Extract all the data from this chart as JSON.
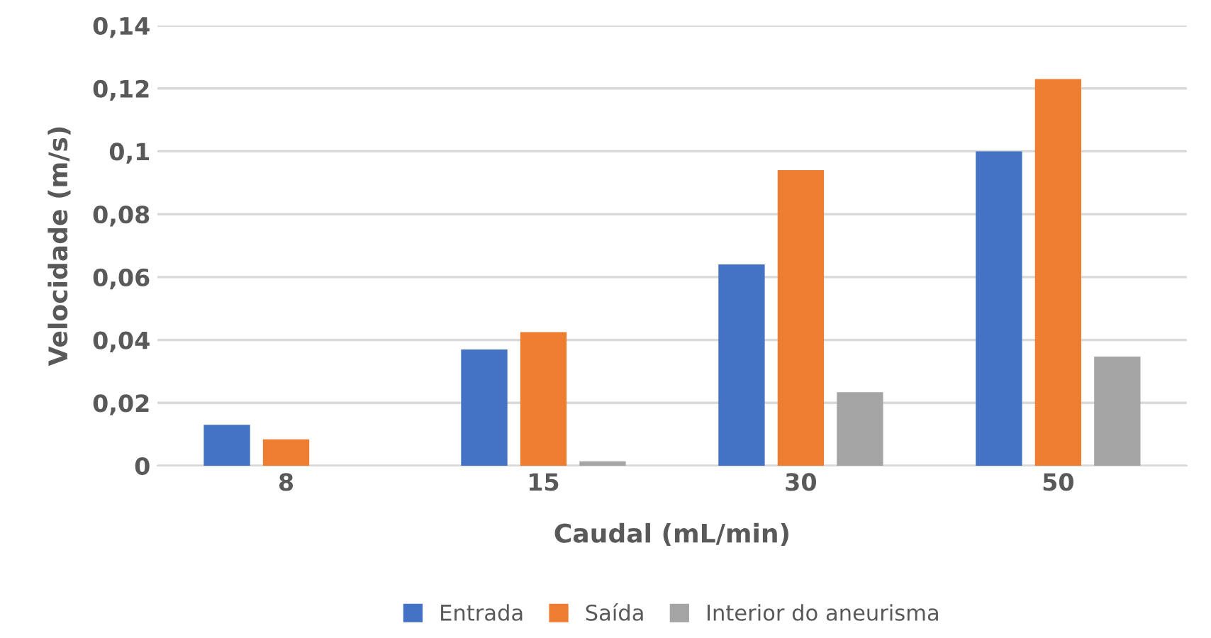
{
  "chart_data": {
    "type": "bar",
    "xlabel": "Caudal (mL/min)",
    "ylabel": "Velocidade (m/s)",
    "categories": [
      "8",
      "15",
      "30",
      "50"
    ],
    "series": [
      {
        "name": "Entrada",
        "color": "#4472c4",
        "values": [
          0.013,
          0.037,
          0.064,
          0.1
        ]
      },
      {
        "name": "Saída",
        "color": "#ed7d31",
        "values": [
          0.0084,
          0.0425,
          0.094,
          0.123
        ]
      },
      {
        "name": "Interior do aneurisma",
        "color": "#a5a5a5",
        "values": [
          0,
          0.0014,
          0.0234,
          0.0347
        ]
      }
    ],
    "ylim": [
      0,
      0.14
    ],
    "yticks": [
      {
        "value": 0,
        "label": "0"
      },
      {
        "value": 0.02,
        "label": "0,02"
      },
      {
        "value": 0.04,
        "label": "0,04"
      },
      {
        "value": 0.06,
        "label": "0,06"
      },
      {
        "value": 0.08,
        "label": "0,08"
      },
      {
        "value": 0.1,
        "label": "0,1"
      },
      {
        "value": 0.12,
        "label": "0,12"
      },
      {
        "value": 0.14,
        "label": "0,14"
      }
    ],
    "grid": "y",
    "legend": "bottom"
  }
}
